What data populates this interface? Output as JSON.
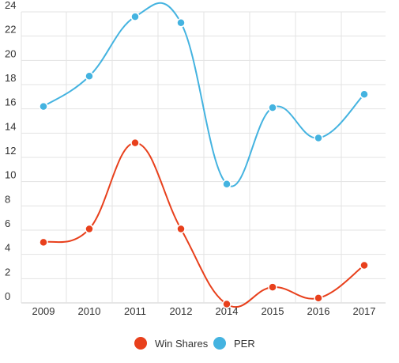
{
  "chart_data": {
    "type": "line",
    "title": "",
    "xlabel": "",
    "ylabel": "",
    "categories": [
      "2009",
      "2010",
      "2011",
      "2012",
      "2014",
      "2015",
      "2016",
      "2017"
    ],
    "ylim": [
      0,
      24
    ],
    "yticks": [
      0,
      2,
      4,
      6,
      8,
      10,
      12,
      14,
      16,
      18,
      20,
      22,
      24
    ],
    "grid": true,
    "smooth": true,
    "legend_position": "bottom",
    "series": [
      {
        "name": "Win Shares",
        "color": "#e8401c",
        "values": [
          5.0,
          6.1,
          13.2,
          6.1,
          -0.1,
          1.3,
          0.4,
          3.1
        ]
      },
      {
        "name": "PER",
        "color": "#44b3e0",
        "values": [
          16.2,
          18.7,
          23.6,
          23.1,
          9.8,
          16.1,
          13.6,
          17.2
        ]
      }
    ]
  }
}
